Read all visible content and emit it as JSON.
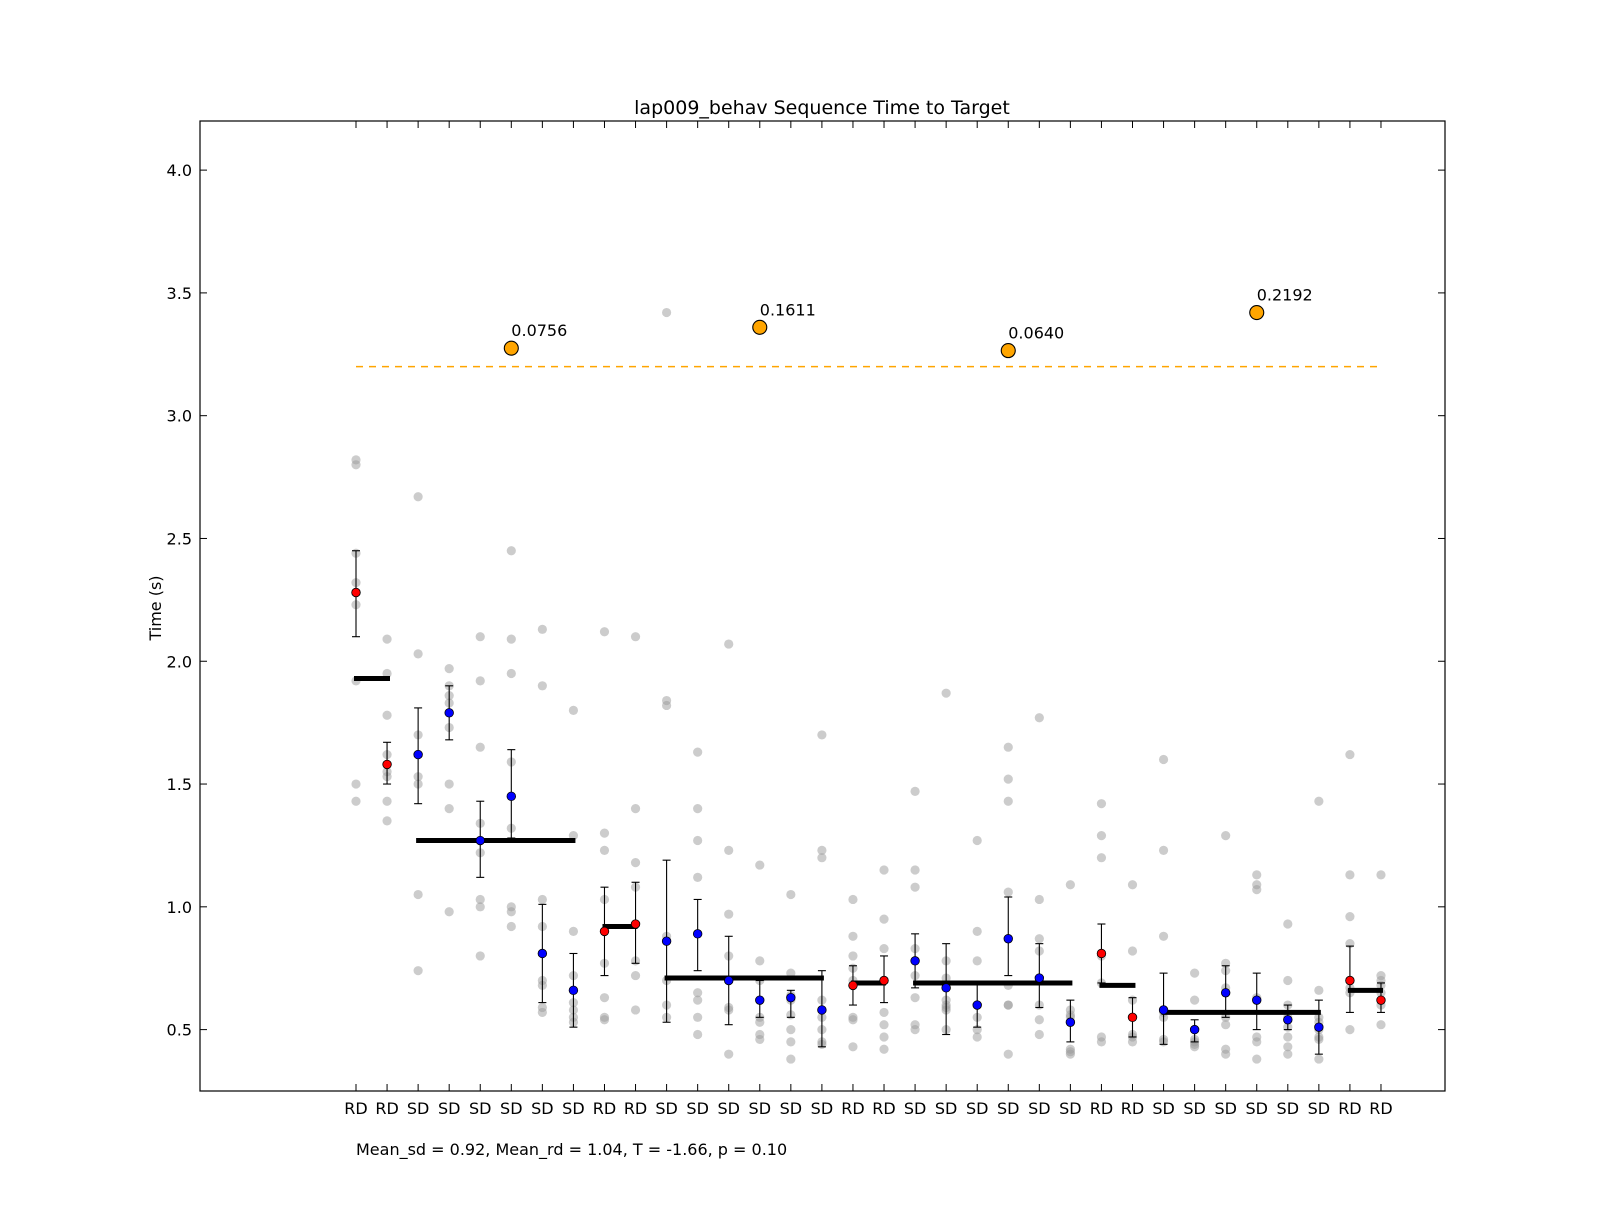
{
  "chart_data": {
    "type": "scatter",
    "title": "lap009_behav Sequence Time to Target",
    "xlabel": "",
    "ylabel": "Time (s)",
    "ylim": [
      0.25,
      4.2
    ],
    "yticks": [
      "0.5",
      "1.0",
      "1.5",
      "2.0",
      "2.5",
      "3.0",
      "3.5",
      "4.0"
    ],
    "grid": false,
    "categories": [
      "RD",
      "RD",
      "SD",
      "SD",
      "SD",
      "SD",
      "SD",
      "SD",
      "RD",
      "RD",
      "SD",
      "SD",
      "SD",
      "SD",
      "SD",
      "SD",
      "RD",
      "RD",
      "SD",
      "SD",
      "SD",
      "SD",
      "SD",
      "SD",
      "RD",
      "RD",
      "SD",
      "SD",
      "SD",
      "SD",
      "SD",
      "SD",
      "RD",
      "RD"
    ],
    "mean_series": [
      {
        "color": "#ff0000",
        "trial_type": "RD",
        "indices": [
          0,
          1,
          8,
          9,
          16,
          17,
          24,
          25,
          32,
          33
        ]
      },
      {
        "color": "#0000ff",
        "trial_type": "SD",
        "indices": [
          2,
          3,
          4,
          5,
          6,
          7,
          10,
          11,
          12,
          13,
          14,
          15,
          18,
          19,
          20,
          21,
          22,
          23,
          26,
          27,
          28,
          29,
          30,
          31
        ]
      }
    ],
    "means": [
      2.28,
      1.58,
      1.62,
      1.79,
      1.27,
      1.45,
      0.81,
      0.66,
      0.9,
      0.93,
      0.86,
      0.89,
      0.7,
      0.62,
      0.63,
      0.58,
      0.68,
      0.7,
      0.78,
      0.67,
      0.6,
      0.87,
      0.71,
      0.53,
      0.81,
      0.55,
      0.58,
      0.5,
      0.65,
      0.62,
      0.54,
      0.51,
      0.7,
      0.62
    ],
    "errors": [
      [
        2.1,
        2.45
      ],
      [
        1.5,
        1.67
      ],
      [
        1.42,
        1.81
      ],
      [
        1.68,
        1.9
      ],
      [
        1.12,
        1.43
      ],
      [
        1.28,
        1.64
      ],
      [
        0.61,
        1.01
      ],
      [
        0.51,
        0.81
      ],
      [
        0.72,
        1.08
      ],
      [
        0.77,
        1.1
      ],
      [
        0.53,
        1.19
      ],
      [
        0.74,
        1.03
      ],
      [
        0.52,
        0.88
      ],
      [
        0.55,
        0.7
      ],
      [
        0.55,
        0.66
      ],
      [
        0.43,
        0.74
      ],
      [
        0.6,
        0.76
      ],
      [
        0.61,
        0.8
      ],
      [
        0.67,
        0.89
      ],
      [
        0.48,
        0.85
      ],
      [
        0.51,
        0.69
      ],
      [
        0.72,
        1.04
      ],
      [
        0.59,
        0.85
      ],
      [
        0.45,
        0.62
      ],
      [
        0.69,
        0.93
      ],
      [
        0.47,
        0.63
      ],
      [
        0.44,
        0.73
      ],
      [
        0.45,
        0.54
      ],
      [
        0.55,
        0.76
      ],
      [
        0.5,
        0.73
      ],
      [
        0.5,
        0.6
      ],
      [
        0.4,
        0.62
      ],
      [
        0.57,
        0.84
      ],
      [
        0.57,
        0.69
      ]
    ],
    "raw_points": [
      [
        2.82,
        2.8,
        2.44,
        2.32,
        2.23,
        1.92,
        1.5,
        1.43
      ],
      [
        2.09,
        1.95,
        1.78,
        1.62,
        1.55,
        1.53,
        1.43,
        1.35
      ],
      [
        2.67,
        2.03,
        1.7,
        1.53,
        1.5,
        1.05,
        0.74
      ],
      [
        1.97,
        1.9,
        1.86,
        1.83,
        1.73,
        1.5,
        1.4,
        0.98
      ],
      [
        2.1,
        1.92,
        1.65,
        1.34,
        1.22,
        1.03,
        1.0,
        0.8
      ],
      [
        2.45,
        2.09,
        1.95,
        1.59,
        1.32,
        1.0,
        0.98,
        0.92
      ],
      [
        2.13,
        1.9,
        1.03,
        0.92,
        0.7,
        0.68,
        0.59,
        0.57
      ],
      [
        1.8,
        1.29,
        0.9,
        0.72,
        0.61,
        0.58,
        0.55,
        0.53
      ],
      [
        2.12,
        1.3,
        1.23,
        1.03,
        0.77,
        0.63,
        0.55,
        0.54
      ],
      [
        2.1,
        1.4,
        1.18,
        1.08,
        0.78,
        0.72,
        0.58
      ],
      [
        3.42,
        1.84,
        1.82,
        0.88,
        0.7,
        0.6,
        0.55
      ],
      [
        1.63,
        1.4,
        1.27,
        1.12,
        0.65,
        0.62,
        0.55,
        0.48
      ],
      [
        2.07,
        1.23,
        0.97,
        0.8,
        0.7,
        0.59,
        0.58,
        0.4
      ],
      [
        1.17,
        0.78,
        0.7,
        0.55,
        0.53,
        0.48,
        0.46
      ],
      [
        1.05,
        0.73,
        0.64,
        0.62,
        0.56,
        0.5,
        0.45,
        0.38
      ],
      [
        1.7,
        1.23,
        1.2,
        0.62,
        0.55,
        0.5,
        0.45,
        0.44
      ],
      [
        1.03,
        0.88,
        0.8,
        0.75,
        0.7,
        0.55,
        0.54,
        0.43
      ],
      [
        1.15,
        0.95,
        0.83,
        0.7,
        0.57,
        0.52,
        0.47,
        0.42
      ],
      [
        1.47,
        1.15,
        1.08,
        0.83,
        0.72,
        0.63,
        0.52,
        0.5
      ],
      [
        1.87,
        0.78,
        0.71,
        0.62,
        0.6,
        0.59,
        0.58,
        0.5
      ],
      [
        1.27,
        0.9,
        0.78,
        0.6,
        0.55,
        0.5,
        0.47
      ],
      [
        1.65,
        1.52,
        1.43,
        1.06,
        0.68,
        0.6,
        0.6,
        0.4
      ],
      [
        1.77,
        1.03,
        0.87,
        0.82,
        0.7,
        0.6,
        0.54,
        0.48
      ],
      [
        1.09,
        0.58,
        0.56,
        0.55,
        0.42,
        0.41,
        0.4
      ],
      [
        1.42,
        1.29,
        1.2,
        0.8,
        0.69,
        0.47,
        0.45
      ],
      [
        1.09,
        0.82,
        0.62,
        0.55,
        0.48,
        0.47,
        0.45
      ],
      [
        1.6,
        1.23,
        0.88,
        0.57,
        0.55,
        0.46,
        0.45
      ],
      [
        0.73,
        0.62,
        0.5,
        0.46,
        0.45,
        0.44,
        0.43
      ],
      [
        1.29,
        0.77,
        0.74,
        0.67,
        0.55,
        0.52,
        0.42,
        0.4
      ],
      [
        1.13,
        1.09,
        1.07,
        0.63,
        0.47,
        0.45,
        0.38
      ],
      [
        0.93,
        0.7,
        0.6,
        0.55,
        0.51,
        0.47,
        0.43,
        0.4
      ],
      [
        1.43,
        0.66,
        0.55,
        0.53,
        0.5,
        0.47,
        0.46,
        0.38
      ],
      [
        1.62,
        1.13,
        0.96,
        0.85,
        0.67,
        0.65,
        0.5
      ],
      [
        1.13,
        0.72,
        0.7,
        0.68,
        0.65,
        0.6,
        0.52
      ]
    ],
    "group_means": [
      {
        "start": 0,
        "end": 0,
        "value": 1.93
      },
      {
        "start": 2,
        "end": 7,
        "value": 1.27
      },
      {
        "start": 8,
        "end": 9,
        "value": 0.92
      },
      {
        "start": 10,
        "end": 15,
        "value": 0.71
      },
      {
        "start": 16,
        "end": 17,
        "value": 0.69
      },
      {
        "start": 18,
        "end": 23,
        "value": 0.69
      },
      {
        "start": 24,
        "end": 24,
        "value": 0.68
      },
      {
        "start": 26,
        "end": 31,
        "value": 0.57
      },
      {
        "start": 32,
        "end": 33,
        "value": 0.66
      }
    ],
    "threshold": {
      "value": 3.2,
      "color": "#ffa500"
    },
    "pvalue_markers": [
      {
        "index": 5,
        "value": 3.275,
        "label": "0.0756"
      },
      {
        "index": 13,
        "value": 3.36,
        "label": "0.1611"
      },
      {
        "index": 21,
        "value": 3.265,
        "label": "0.0640"
      },
      {
        "index": 29,
        "value": 3.42,
        "label": "0.2192"
      }
    ],
    "footer": "Mean_sd = 0.92, Mean_rd = 1.04, T = -1.66, p = 0.10"
  }
}
